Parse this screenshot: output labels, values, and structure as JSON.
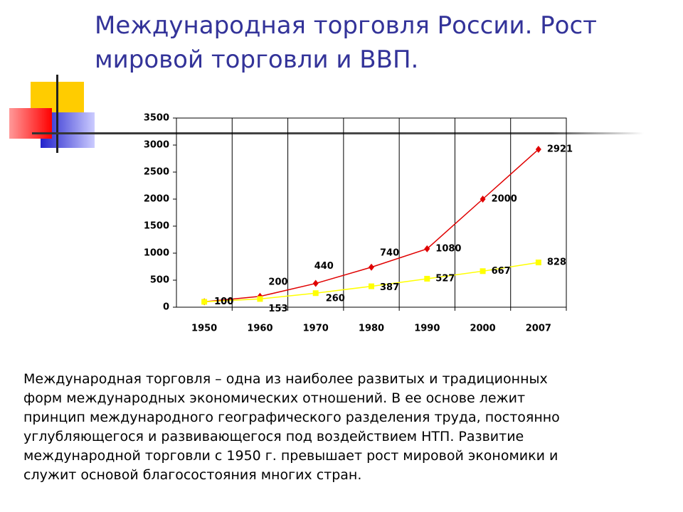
{
  "slide": {
    "title": [
      "Международная торговля России. Рост",
      "мировой торговли и ВВП."
    ],
    "body": [
      "Международная торговля – одна из наиболее развитых и традиционных",
      "форм международных экономических отношений. В ее основе лежит",
      "принцип международного географического разделения труда, постоянно",
      "углубляющегося и развивающегося под воздействием НТП. Развитие",
      "международной торговли с 1950 г. превышает рост мировой экономики и",
      "служит основой благосостояния многих стран."
    ]
  },
  "chart_data": {
    "type": "line",
    "categories": [
      "1950",
      "1960",
      "1970",
      "1980",
      "1990",
      "2000",
      "2007"
    ],
    "series": [
      {
        "color": "#e00000",
        "values": [
          100,
          200,
          440,
          740,
          1080,
          2000,
          2921
        ]
      },
      {
        "color": "#ffff00",
        "values": [
          100,
          153,
          260,
          387,
          527,
          667,
          828
        ]
      }
    ],
    "ylim": [
      0,
      3500
    ],
    "yticks": [
      0,
      500,
      1000,
      1500,
      2000,
      2500,
      3000,
      3500
    ],
    "grid": true
  }
}
